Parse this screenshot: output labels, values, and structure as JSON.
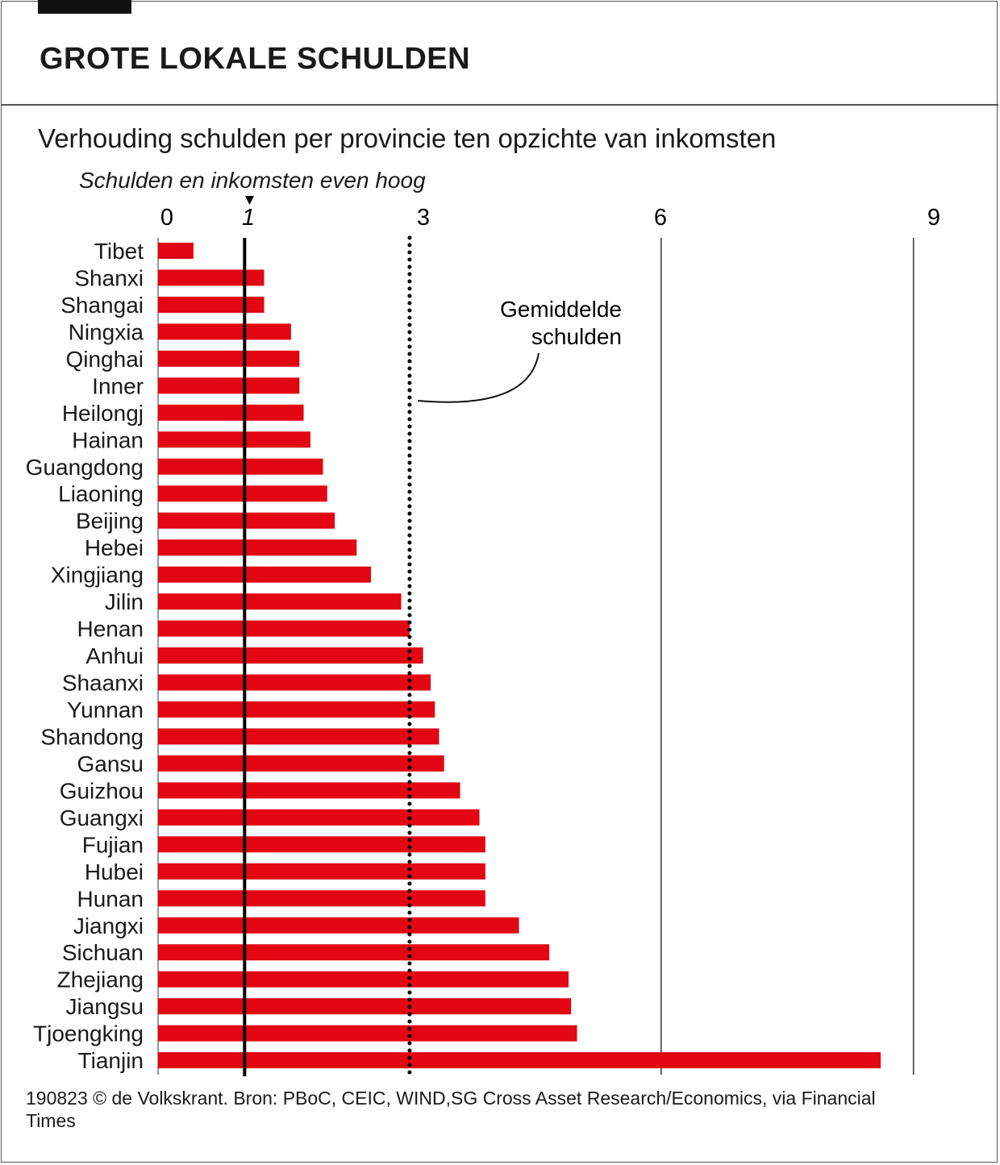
{
  "header": {
    "title": "GROTE LOKALE SCHULDEN",
    "subtitle": "Verhouding schulden per provincie ten opzichte van inkomsten"
  },
  "footer": {
    "source": "190823 © de Volkskrant. Bron: PBoC, CEIC, WIND,SG Cross Asset Research/Economics, via Financial Times"
  },
  "chart_data": {
    "type": "bar",
    "orientation": "horizontal",
    "title": "GROTE LOKALE SCHULDEN",
    "subtitle": "Verhouding schulden per provincie ten opzichte van inkomsten",
    "xlim": [
      0,
      9
    ],
    "ticks": [
      "0",
      "1",
      "3",
      "6",
      "9"
    ],
    "tick_values": [
      0,
      1,
      3,
      6,
      9
    ],
    "gridlines": [
      6,
      9
    ],
    "bar_color": "#e30613",
    "reference_line": {
      "value": 1,
      "label": "Schulden en inkomsten even hoog"
    },
    "average_line": {
      "value": 3.0,
      "label_line1": "Gemiddelde",
      "label_line2": "schulden"
    },
    "categories": [
      "Tibet",
      "Shanxi",
      "Shangai",
      "Ningxia",
      "Qinghai",
      "Inner",
      "Heilongj",
      "Hainan",
      "Guangdong",
      "Liaoning",
      "Beijing",
      "Hebei",
      "Xingjiang",
      "Jilin",
      "Henan",
      "Anhui",
      "Shaanxi",
      "Yunnan",
      "Shandong",
      "Gansu",
      "Guizhou",
      "Guangxi",
      "Fujian",
      "Hubei",
      "Hunan",
      "Jiangxi",
      "Sichuan",
      "Zhejiang",
      "Jiangsu",
      "Tjoengking",
      "Tianjin"
    ],
    "values": [
      0.44,
      1.28,
      1.28,
      1.6,
      1.7,
      1.7,
      1.75,
      1.83,
      1.98,
      2.03,
      2.12,
      2.38,
      2.55,
      2.91,
      3.01,
      3.17,
      3.26,
      3.31,
      3.36,
      3.42,
      3.61,
      3.84,
      3.91,
      3.91,
      3.91,
      4.31,
      4.67,
      4.9,
      4.93,
      5.0,
      8.61
    ]
  }
}
